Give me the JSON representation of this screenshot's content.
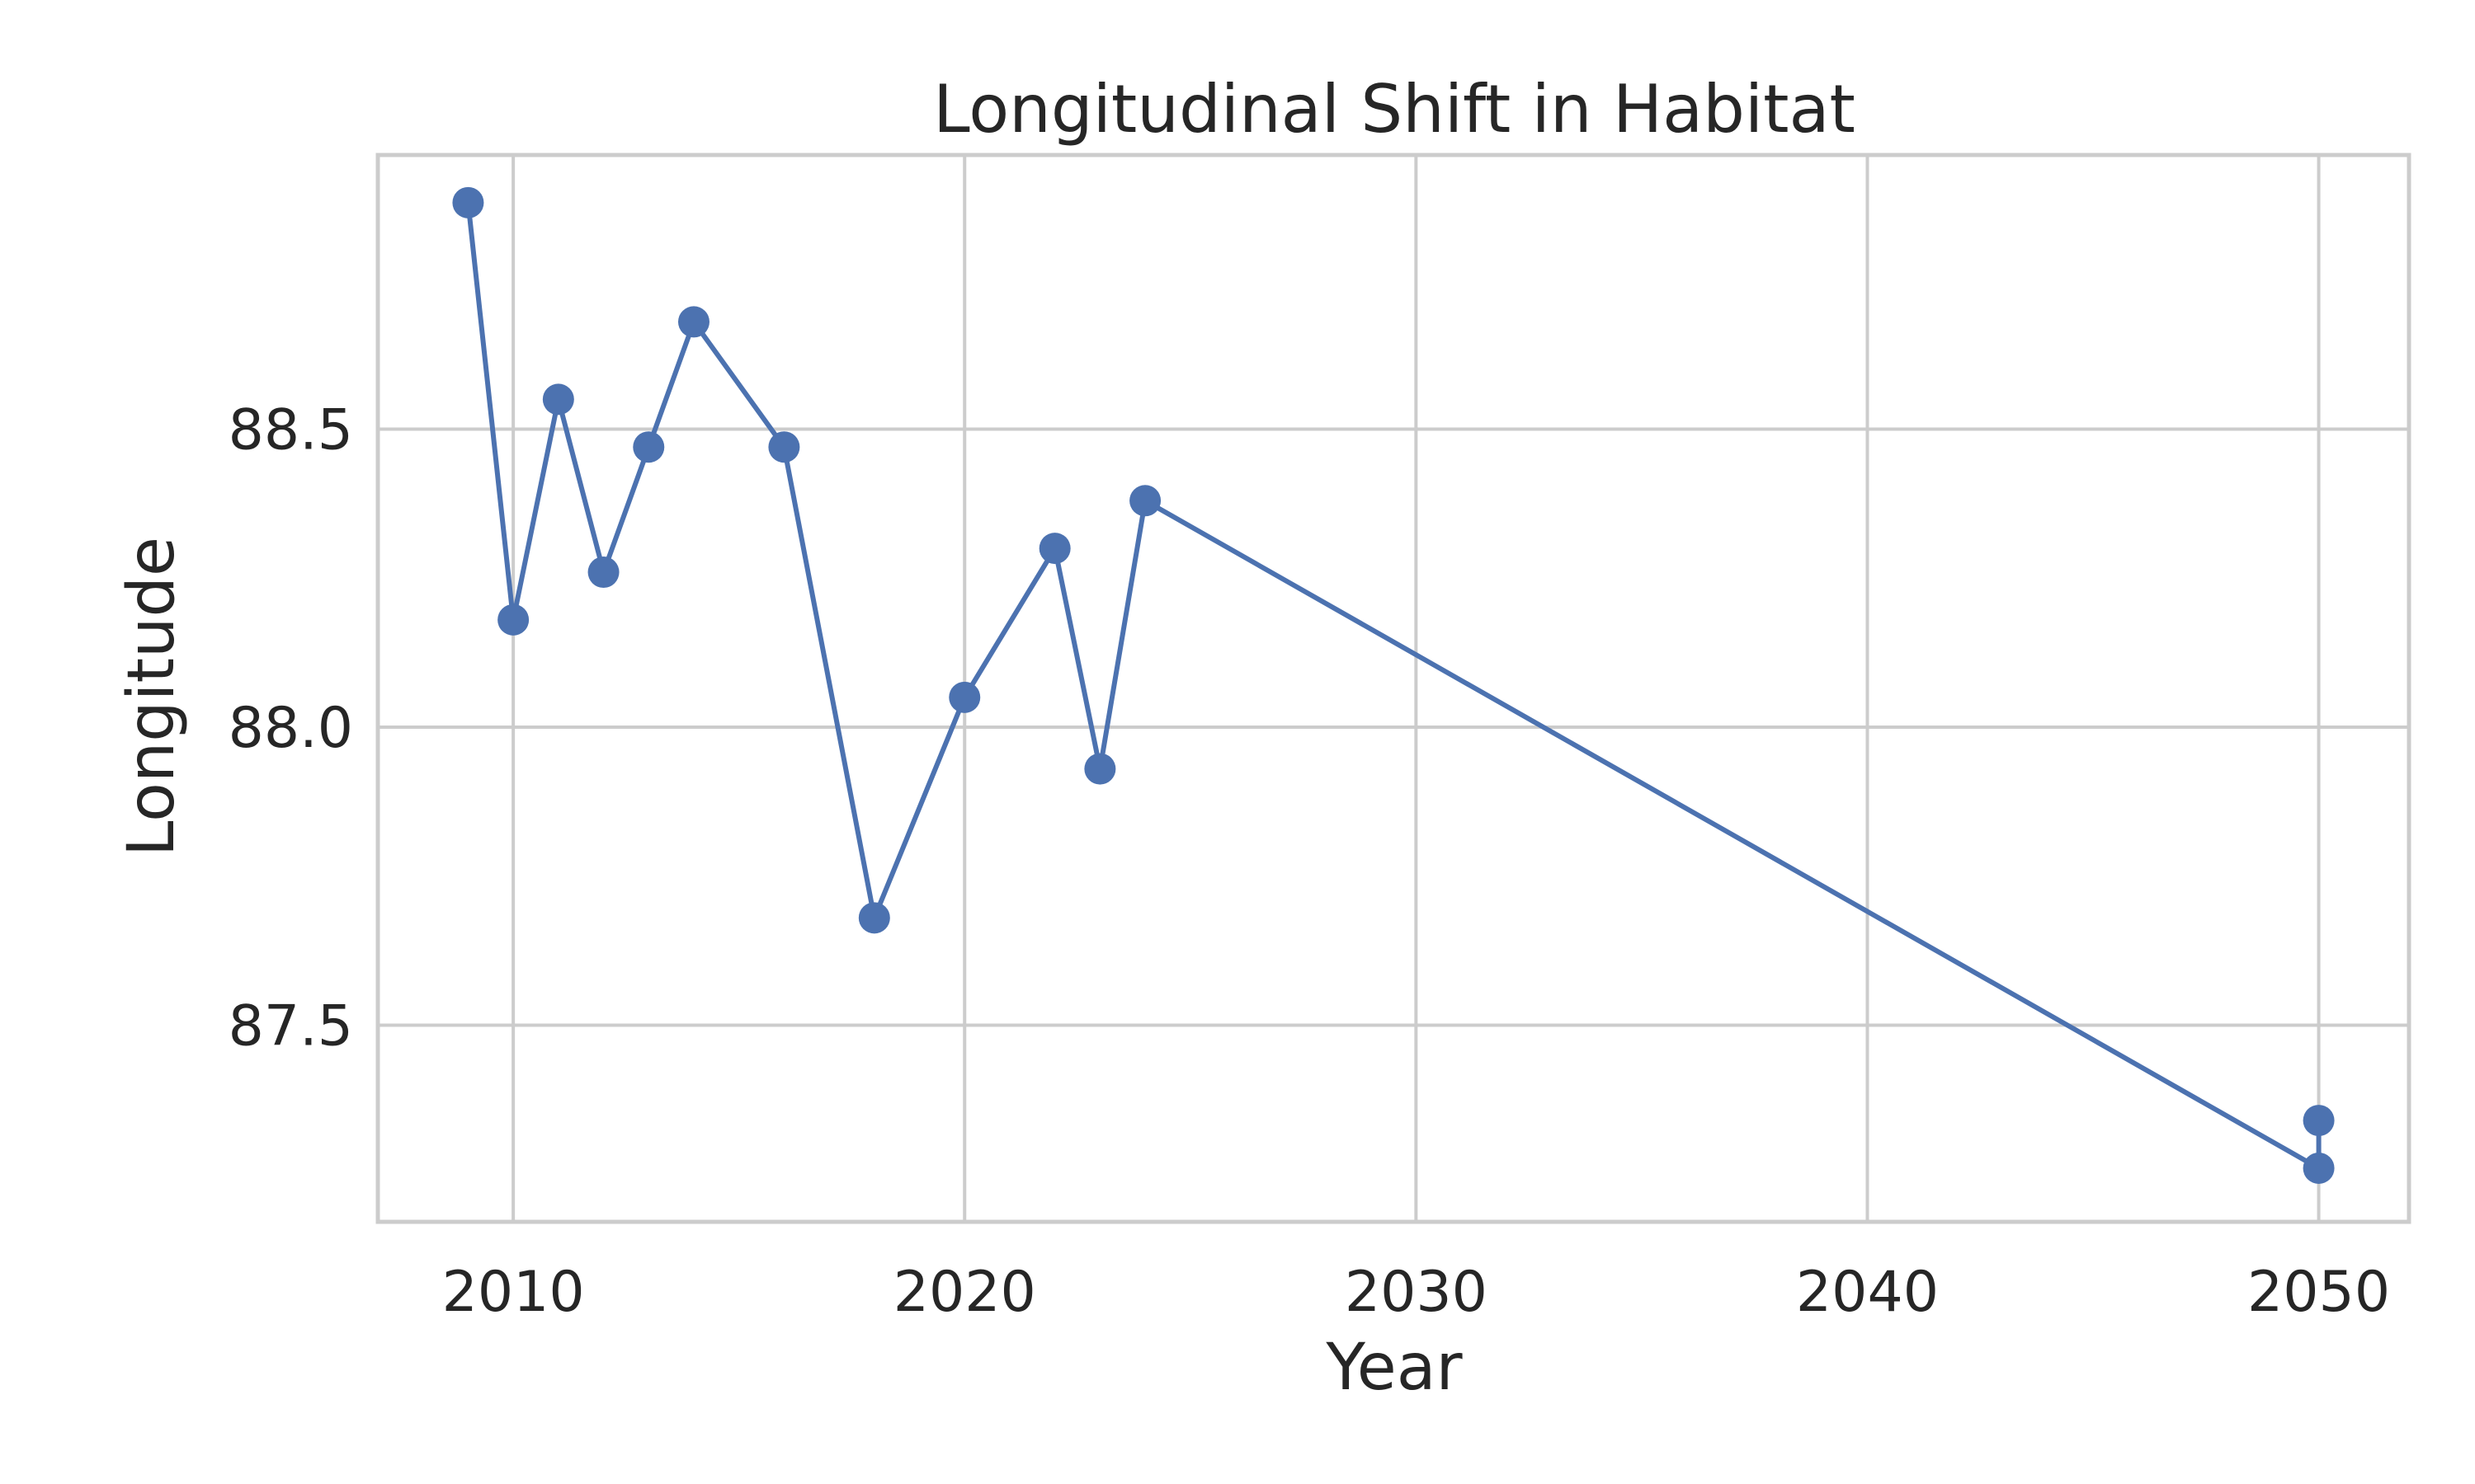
{
  "chart_data": {
    "type": "line",
    "title": "Longitudinal Shift in Habitat",
    "xlabel": "Year",
    "ylabel": "Longitude",
    "xlim": [
      2007,
      2052
    ],
    "ylim": [
      87.17,
      88.96
    ],
    "xticks": [
      2010,
      2020,
      2030,
      2040,
      2050
    ],
    "yticks": [
      87.5,
      88.0,
      88.5
    ],
    "x_tick_labels": [
      "2010",
      "2020",
      "2030",
      "2040",
      "2050"
    ],
    "y_tick_labels": [
      "87.5",
      "88.0",
      "88.5"
    ],
    "grid": true,
    "legend": false,
    "series": [
      {
        "x": [
          2009,
          2010,
          2011,
          2012,
          2013,
          2014,
          2016,
          2018,
          2020,
          2022,
          2023,
          2024,
          2050,
          2050
        ],
        "y": [
          88.88,
          88.18,
          88.55,
          88.26,
          88.47,
          88.68,
          88.47,
          87.68,
          88.05,
          88.3,
          87.93,
          88.38,
          87.26,
          87.34
        ],
        "color": "#4c72b0",
        "marker": "circle"
      }
    ]
  }
}
